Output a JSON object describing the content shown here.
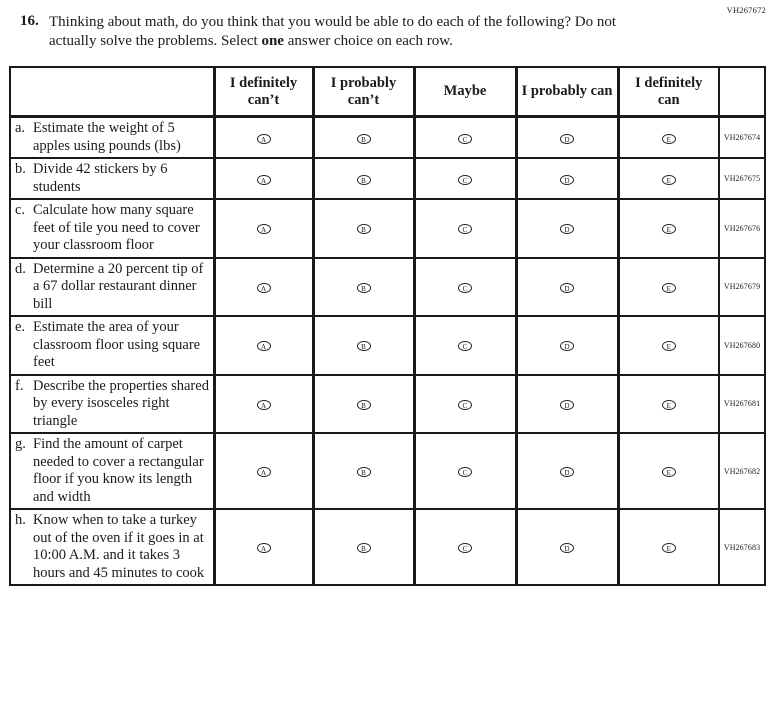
{
  "page": {
    "accession_code": "VH267672",
    "background": "#ffffff",
    "text_color": "#1b1b1b",
    "border_color": "#1a1a1a"
  },
  "question": {
    "number": "16.",
    "text_before_bold": "Thinking about math, do you think that you would be able to do each of the following? Do not actually solve the problems. Select ",
    "bold_word": "one",
    "text_after_bold": " answer choice on each row."
  },
  "table": {
    "columns": [
      "I definitely can’t",
      "I probably can’t",
      "Maybe",
      "I probably can",
      "I definitely can"
    ],
    "option_letters": [
      "A",
      "B",
      "C",
      "D",
      "E"
    ],
    "rows": [
      {
        "letter": "a.",
        "text": "Estimate the weight of 5 apples using pounds (lbs)",
        "code": "VH267674"
      },
      {
        "letter": "b.",
        "text": "Divide 42 stickers by 6 students",
        "code": "VH267675"
      },
      {
        "letter": "c.",
        "text": "Calculate how many square feet of tile you need to cover your classroom floor",
        "code": "VH267676"
      },
      {
        "letter": "d.",
        "text": "Determine a 20 percent tip of a 67 dollar restaurant dinner bill",
        "code": "VH267679"
      },
      {
        "letter": "e.",
        "text": "Estimate the area of your classroom floor using square feet",
        "code": "VH267680"
      },
      {
        "letter": "f.",
        "text": "Describe the properties shared by every isosceles right triangle",
        "code": "VH267681"
      },
      {
        "letter": "g.",
        "text": "Find the amount of carpet needed to cover a rectangular floor if you know its length and width",
        "code": "VH267682"
      },
      {
        "letter": "h.",
        "text": "Know when to take a turkey out of the oven if it goes in at 10:00 A.M. and it takes 3 hours and 45 minutes to cook",
        "code": "VH267683"
      }
    ]
  }
}
